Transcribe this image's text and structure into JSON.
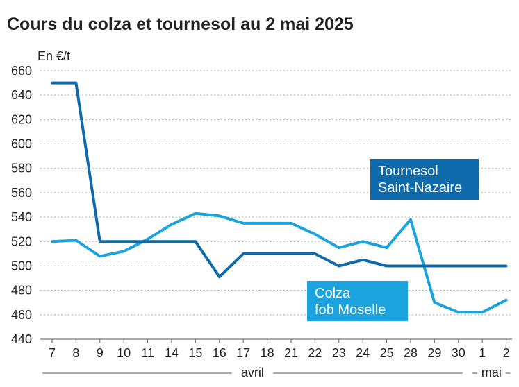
{
  "chart_data": {
    "type": "line",
    "title": "Cours du colza et tournesol au 2 mai 2025",
    "ylabel": "En €/t",
    "ylim": [
      440,
      660
    ],
    "yticks": [
      440,
      460,
      480,
      500,
      520,
      540,
      560,
      580,
      600,
      620,
      640,
      660
    ],
    "categories": [
      "7",
      "8",
      "9",
      "10",
      "11",
      "14",
      "15",
      "16",
      "17",
      "18",
      "21",
      "22",
      "23",
      "24",
      "25",
      "28",
      "29",
      "30",
      "1",
      "2"
    ],
    "months": [
      {
        "label": "avril",
        "from": 0,
        "to": 17
      },
      {
        "label": "mai",
        "from": 18,
        "to": 19
      }
    ],
    "grid": true,
    "series": [
      {
        "name": "Tournesol\nSaint-Nazaire",
        "lines": [
          "Tournesol",
          "Saint-Nazaire"
        ],
        "color": "#0f6aab",
        "values": [
          650,
          650,
          520,
          520,
          520,
          520,
          520,
          491,
          510,
          510,
          510,
          510,
          500,
          505,
          500,
          500,
          500,
          500,
          500,
          500
        ]
      },
      {
        "name": "Colza\nfob Moselle",
        "lines": [
          "Colza",
          "fob Moselle"
        ],
        "color": "#1aa3dd",
        "values": [
          520,
          521,
          508,
          512,
          522,
          534,
          543,
          541,
          535,
          535,
          535,
          526,
          515,
          520,
          515,
          538,
          470,
          462,
          462,
          472
        ]
      }
    ]
  }
}
